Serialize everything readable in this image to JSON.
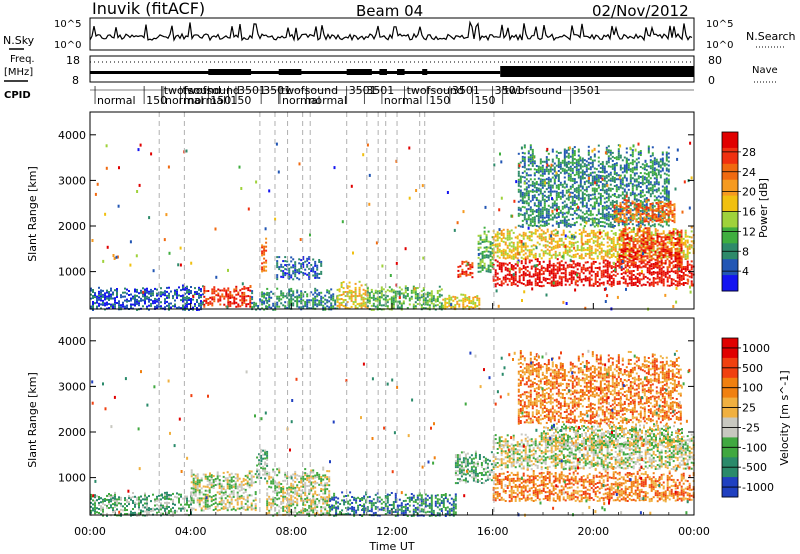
{
  "header": {
    "station": "Inuvik (fitACF)",
    "beam": "Beam 04",
    "date": "02/Nov/2012"
  },
  "strips": {
    "nsky_label": "N.Sky",
    "nsky_ticks": [
      "10^5",
      "10^0"
    ],
    "nsearch_label": "N.Search",
    "nsearch_ticks": [
      "10^5",
      "10^0"
    ],
    "freq_label_line1": "Freq.",
    "freq_label_line2": "[MHz]",
    "freq_ticks": [
      "18",
      "8"
    ],
    "nave_label": "Nave",
    "nave_ticks": [
      "80",
      "0"
    ],
    "cpid_label": "CPID"
  },
  "cpid_modes": [
    {
      "t": 0.2,
      "label": "normal",
      "row": 1
    },
    {
      "t": 2.15,
      "label": "150",
      "row": 1
    },
    {
      "t": 2.85,
      "label": "twofsound",
      "row": 0
    },
    {
      "t": 2.9,
      "label": "normal",
      "row": 1
    },
    {
      "t": 3.6,
      "label": "twofsound",
      "row": 0
    },
    {
      "t": 3.8,
      "label": "normal",
      "row": 1
    },
    {
      "t": 4.7,
      "label": "150",
      "row": 1
    },
    {
      "t": 5.5,
      "label": "150",
      "row": 1
    },
    {
      "t": 5.8,
      "label": "3501",
      "row": 0
    },
    {
      "t": 6.8,
      "label": "3501",
      "row": 0
    },
    {
      "t": 7.5,
      "label": "twofsound",
      "row": 0
    },
    {
      "t": 7.55,
      "label": "normal",
      "row": 1
    },
    {
      "t": 8.6,
      "label": "normal",
      "row": 1
    },
    {
      "t": 10.2,
      "label": "3501",
      "row": 0
    },
    {
      "t": 10.9,
      "label": "3501",
      "row": 0
    },
    {
      "t": 11.6,
      "label": "normal",
      "row": 1
    },
    {
      "t": 12.5,
      "label": "twofsound",
      "row": 0
    },
    {
      "t": 13.4,
      "label": "150",
      "row": 1
    },
    {
      "t": 14.3,
      "label": "3501",
      "row": 0
    },
    {
      "t": 15.2,
      "label": "150",
      "row": 1
    },
    {
      "t": 16.0,
      "label": "3501",
      "row": 0
    },
    {
      "t": 16.4,
      "label": "twofsound",
      "row": 0
    },
    {
      "t": 19.1,
      "label": "3501",
      "row": 0
    }
  ],
  "chart_data": [
    {
      "type": "heatmap",
      "title": "",
      "xlabel": "Time UT",
      "ylabel": "Slant Range [km]",
      "xlim": [
        0,
        24
      ],
      "ylim": [
        180,
        4500
      ],
      "x_ticks": [
        "00:00",
        "04:00",
        "08:00",
        "12:00",
        "16:00",
        "20:00",
        "00:00"
      ],
      "y_ticks": [
        1000,
        2000,
        3000,
        4000
      ],
      "colorbar": {
        "label": "Power [dB]",
        "ticks": [
          "4",
          "8",
          "12",
          "16",
          "20",
          "24",
          "28"
        ],
        "colors": [
          "#1414f0",
          "#2256b4",
          "#2e8a6a",
          "#3fae3f",
          "#9fd23b",
          "#f0c010",
          "#f59a20",
          "#f06a10",
          "#f03010",
          "#e00000"
        ]
      },
      "mode_change_times": [
        2.75,
        3.75,
        6.75,
        7.35,
        7.85,
        8.45,
        8.75,
        10.2,
        11.0,
        11.45,
        11.75,
        12.2,
        13.1,
        13.3,
        16.05
      ],
      "echo_regions": [
        {
          "t0": 0.0,
          "t1": 4.5,
          "r0": 180,
          "r1": 720,
          "level": 1
        },
        {
          "t0": 4.5,
          "t1": 6.4,
          "r0": 250,
          "r1": 700,
          "level": 8
        },
        {
          "t0": 6.4,
          "t1": 7.0,
          "r0": 180,
          "r1": 600,
          "level": 2
        },
        {
          "t0": 6.8,
          "t1": 7.0,
          "r0": 1000,
          "r1": 1750,
          "level": 7
        },
        {
          "t0": 7.4,
          "t1": 9.2,
          "r0": 850,
          "r1": 1350,
          "level": 1
        },
        {
          "t0": 7.0,
          "t1": 9.8,
          "r0": 180,
          "r1": 650,
          "level": 2
        },
        {
          "t0": 9.8,
          "t1": 11.0,
          "r0": 200,
          "r1": 800,
          "level": 5
        },
        {
          "t0": 11.0,
          "t1": 14.0,
          "r0": 180,
          "r1": 700,
          "level": 3
        },
        {
          "t0": 14.0,
          "t1": 15.5,
          "r0": 200,
          "r1": 520,
          "level": 5
        },
        {
          "t0": 14.6,
          "t1": 15.2,
          "r0": 900,
          "r1": 1300,
          "level": 8
        },
        {
          "t0": 15.4,
          "t1": 16.0,
          "r0": 1000,
          "r1": 2000,
          "level": 3
        },
        {
          "t0": 16.0,
          "t1": 24.0,
          "r0": 700,
          "r1": 1300,
          "level": 9
        },
        {
          "t0": 16.0,
          "t1": 24.0,
          "r0": 1300,
          "r1": 2000,
          "level": 5
        },
        {
          "t0": 17.0,
          "t1": 23.0,
          "r0": 2000,
          "r1": 3800,
          "level": 2
        },
        {
          "t0": 20.8,
          "t1": 23.2,
          "r0": 2100,
          "r1": 2600,
          "level": 7
        },
        {
          "t0": 21.0,
          "t1": 23.5,
          "r0": 1100,
          "r1": 2000,
          "level": 8
        }
      ]
    },
    {
      "type": "heatmap",
      "title": "",
      "xlabel": "Time UT",
      "ylabel": "Slant Range [km]",
      "xlim": [
        0,
        24
      ],
      "ylim": [
        180,
        4500
      ],
      "x_ticks": [
        "00:00",
        "04:00",
        "08:00",
        "12:00",
        "16:00",
        "20:00",
        "00:00"
      ],
      "y_ticks": [
        1000,
        2000,
        3000,
        4000
      ],
      "colorbar": {
        "label": "Velocity [m s^-1]",
        "ticks": [
          "1000",
          "500",
          "100",
          "25",
          "-25",
          "-100",
          "-500",
          "-1000"
        ],
        "colors": [
          "#2040c0",
          "#2a8a6a",
          "#40a840",
          "#c8c8c0",
          "#f0b040",
          "#f08010",
          "#f04010",
          "#e00000"
        ]
      },
      "mode_change_times": [
        2.75,
        3.75,
        6.75,
        7.35,
        7.85,
        8.45,
        8.75,
        10.2,
        11.0,
        11.45,
        11.75,
        12.2,
        13.1,
        13.3,
        16.05
      ],
      "echo_regions": [
        {
          "t0": 0.0,
          "t1": 4.0,
          "r0": 180,
          "r1": 700,
          "level": 2
        },
        {
          "t0": 4.0,
          "t1": 6.6,
          "r0": 300,
          "r1": 1200,
          "level": 3
        },
        {
          "t0": 6.6,
          "t1": 7.0,
          "r0": 1000,
          "r1": 1750,
          "level": 2
        },
        {
          "t0": 7.0,
          "t1": 9.5,
          "r0": 180,
          "r1": 1300,
          "level": 3
        },
        {
          "t0": 9.5,
          "t1": 11.0,
          "r0": 180,
          "r1": 700,
          "level": 1
        },
        {
          "t0": 11.0,
          "t1": 14.5,
          "r0": 180,
          "r1": 700,
          "level": 1
        },
        {
          "t0": 14.5,
          "t1": 16.0,
          "r0": 900,
          "r1": 1600,
          "level": 2
        },
        {
          "t0": 16.0,
          "t1": 24.0,
          "r0": 500,
          "r1": 1200,
          "level": 5
        },
        {
          "t0": 16.0,
          "t1": 24.0,
          "r0": 1200,
          "r1": 2000,
          "level": 3
        },
        {
          "t0": 18.0,
          "t1": 23.5,
          "r0": 1700,
          "r1": 2200,
          "level": 3
        },
        {
          "t0": 17.0,
          "t1": 23.5,
          "r0": 2200,
          "r1": 3800,
          "level": 5
        }
      ]
    }
  ]
}
